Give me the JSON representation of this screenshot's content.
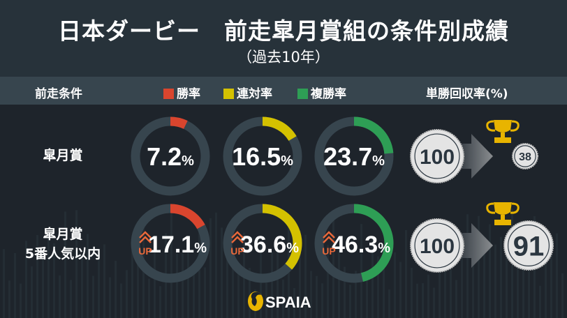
{
  "header": {
    "title": "日本ダービー　前走皐月賞組の条件別成績",
    "subtitle": "（過去10年）"
  },
  "legend_bar": {
    "condition_label": "前走条件",
    "items": [
      {
        "label": "勝率",
        "color": "#d9452e"
      },
      {
        "label": "連対率",
        "color": "#d4c100"
      },
      {
        "label": "複勝率",
        "color": "#2e9e55"
      }
    ],
    "return_label": "単勝回収率(%)"
  },
  "rows": [
    {
      "label_lines": [
        "皐月賞"
      ],
      "win_rate": "7.2",
      "quinella_rate": "16.5",
      "show_rate": "23.7",
      "up": false,
      "return_from": "100",
      "return_to": "38"
    },
    {
      "label_lines": [
        "皐月賞",
        "5番人気以内"
      ],
      "win_rate": "17.1",
      "quinella_rate": "36.6",
      "show_rate": "46.3",
      "up": true,
      "up_label": "UP",
      "return_from": "100",
      "return_to": "91"
    }
  ],
  "percent_sign": "%",
  "colors": {
    "win": "#d9452e",
    "quinella": "#d4c100",
    "show": "#2e9e55",
    "ring_track": "#37454e",
    "up_accent": "#e8683a",
    "trophy": "#e8b400",
    "coin_text": "#2b3640"
  },
  "footer": {
    "brand": "SPAIA"
  },
  "chart_data": {
    "type": "pie",
    "title": "日本ダービー 前走皐月賞組の条件別成績（過去10年）",
    "categories": [
      "皐月賞",
      "皐月賞 5番人気以内"
    ],
    "series": [
      {
        "name": "勝率",
        "values": [
          7.2,
          17.1
        ]
      },
      {
        "name": "連対率",
        "values": [
          16.5,
          36.6
        ]
      },
      {
        "name": "複勝率",
        "values": [
          23.7,
          46.3
        ]
      },
      {
        "name": "単勝回収率(%)",
        "values": [
          38,
          91
        ]
      }
    ],
    "unit": "%",
    "notes": "Donut charts show each rate as a fraction of 100%; return rate shown as 100 → value coins."
  }
}
